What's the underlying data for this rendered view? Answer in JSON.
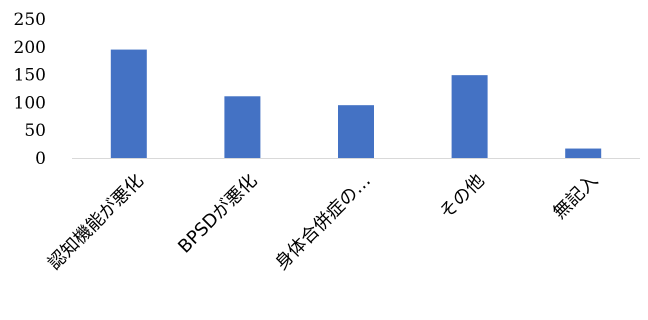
{
  "chart_data": {
    "type": "bar",
    "categories": [
      "認知機能が悪化",
      "BPSDが悪化",
      "身体合併症の…",
      "その他",
      "無記入"
    ],
    "values": [
      195,
      111,
      95,
      149,
      17
    ],
    "ylim": [
      0,
      250
    ],
    "yticks": [
      0,
      50,
      100,
      150,
      200,
      250
    ],
    "grid": false,
    "legend": "none",
    "bar_color": "#4472c4"
  }
}
